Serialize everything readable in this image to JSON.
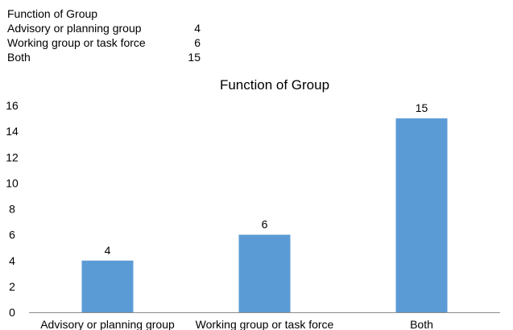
{
  "table": {
    "title": "Function of Group",
    "rows": [
      {
        "label": "Advisory or planning group",
        "value": "4"
      },
      {
        "label": "Working group or task force",
        "value": "6"
      },
      {
        "label": "Both",
        "value": "15"
      }
    ]
  },
  "chart_data": {
    "type": "bar",
    "title": "Function of Group",
    "categories": [
      "Advisory or planning group",
      "Working group or task force",
      "Both"
    ],
    "values": [
      4,
      6,
      15
    ],
    "data_labels": [
      "4",
      "6",
      "15"
    ],
    "xlabel": "",
    "ylabel": "",
    "ylim": [
      0,
      16
    ],
    "yticks": [
      0,
      2,
      4,
      6,
      8,
      10,
      12,
      14,
      16
    ],
    "ytick_labels": [
      "0",
      "2",
      "4",
      "6",
      "8",
      "10",
      "12",
      "14",
      "16"
    ],
    "grid": false,
    "legend": "none",
    "bar_color": "#5B9BD5",
    "axis_color": "#8C8C8C"
  }
}
